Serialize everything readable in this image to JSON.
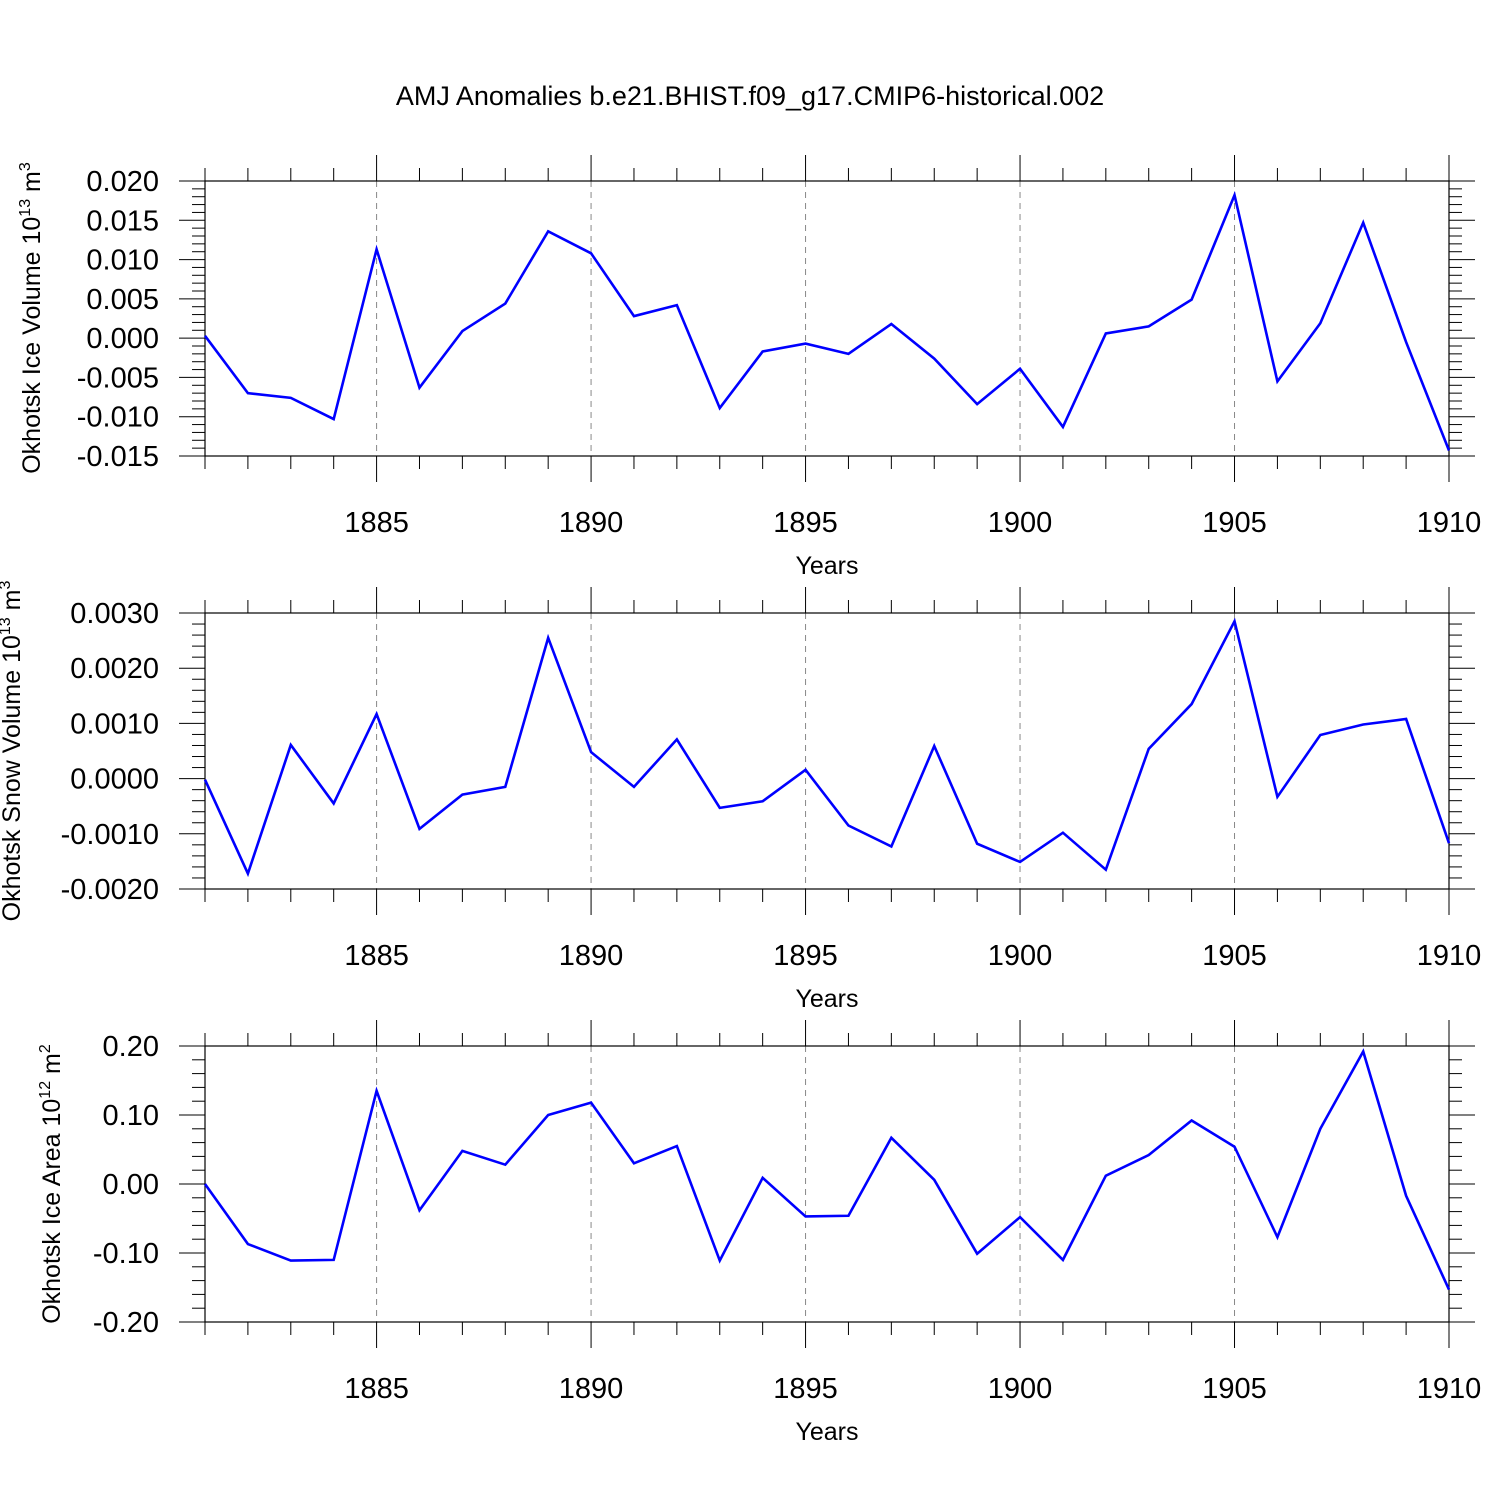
{
  "title": "AMJ Anomalies b.e21.BHIST.f09_g17.CMIP6-historical.002",
  "chart_data": [
    {
      "type": "line",
      "title": "",
      "xlabel": "Years",
      "ylabel": {
        "main": "Okhotsk Ice Volume 10",
        "exp": "13",
        "unit": " m",
        "unit_exp": "3"
      },
      "xlim": [
        1881,
        1910
      ],
      "ylim": [
        -0.015,
        0.02
      ],
      "x_ticks": [
        1885,
        1890,
        1895,
        1900,
        1905,
        1910
      ],
      "y_ticks": [
        -0.015,
        -0.01,
        -0.005,
        0.0,
        0.005,
        0.01,
        0.015,
        0.02
      ],
      "y_tick_labels": [
        "-0.015",
        "-0.010",
        "-0.005",
        "0.000",
        "0.005",
        "0.010",
        "0.015",
        "0.020"
      ],
      "grid": "vertical dashed at major x ticks",
      "color": "#0000ff",
      "series": [
        {
          "name": "Okhotsk Ice Volume",
          "x": [
            1881,
            1882,
            1883,
            1884,
            1885,
            1886,
            1887,
            1888,
            1889,
            1890,
            1891,
            1892,
            1893,
            1894,
            1895,
            1896,
            1897,
            1898,
            1899,
            1900,
            1901,
            1902,
            1903,
            1904,
            1905,
            1906,
            1907,
            1908,
            1909,
            1910
          ],
          "values": [
            0.0003,
            -0.007,
            -0.0076,
            -0.0103,
            0.0113,
            -0.0063,
            0.0009,
            0.0044,
            0.0136,
            0.0108,
            0.0028,
            0.0042,
            -0.0089,
            -0.0017,
            -0.0007,
            -0.002,
            0.0018,
            -0.0026,
            -0.0084,
            -0.0039,
            -0.0113,
            0.0006,
            0.0015,
            0.0049,
            0.0182,
            -0.0055,
            0.0019,
            0.0147,
            -0.0005,
            -0.0143
          ]
        }
      ]
    },
    {
      "type": "line",
      "title": "",
      "xlabel": "Years",
      "ylabel": {
        "main": "Okhotsk Snow Volume 10",
        "exp": "13",
        "unit": " m",
        "unit_exp": "3"
      },
      "xlim": [
        1881,
        1910
      ],
      "ylim": [
        -0.002,
        0.003
      ],
      "x_ticks": [
        1885,
        1890,
        1895,
        1900,
        1905,
        1910
      ],
      "y_ticks": [
        -0.002,
        -0.001,
        0.0,
        0.001,
        0.002,
        0.003
      ],
      "y_tick_labels": [
        "-0.0020",
        "-0.0010",
        "0.0000",
        "0.0010",
        "0.0020",
        "0.0030"
      ],
      "grid": "vertical dashed at major x ticks",
      "color": "#0000ff",
      "series": [
        {
          "name": "Okhotsk Snow Volume",
          "x": [
            1881,
            1882,
            1883,
            1884,
            1885,
            1886,
            1887,
            1888,
            1889,
            1890,
            1891,
            1892,
            1893,
            1894,
            1895,
            1896,
            1897,
            1898,
            1899,
            1900,
            1901,
            1902,
            1903,
            1904,
            1905,
            1906,
            1907,
            1908,
            1909,
            1910
          ],
          "values": [
            -2e-05,
            -0.00172,
            0.00061,
            -0.00045,
            0.00117,
            -0.00091,
            -0.00029,
            -0.00015,
            0.00255,
            0.00048,
            -0.00015,
            0.00071,
            -0.00053,
            -0.00041,
            0.00016,
            -0.00085,
            -0.00123,
            0.00059,
            -0.00118,
            -0.00151,
            -0.00098,
            -0.00165,
            0.00054,
            0.00135,
            0.00285,
            -0.00033,
            0.00079,
            0.00098,
            0.00108,
            -0.00117
          ]
        }
      ]
    },
    {
      "type": "line",
      "title": "",
      "xlabel": "Years",
      "ylabel": {
        "main": "Okhotsk Ice Area 10",
        "exp": "12",
        "unit": " m",
        "unit_exp": "2"
      },
      "xlim": [
        1881,
        1910
      ],
      "ylim": [
        -0.2,
        0.2
      ],
      "x_ticks": [
        1885,
        1890,
        1895,
        1900,
        1905,
        1910
      ],
      "y_ticks": [
        -0.2,
        -0.1,
        0.0,
        0.1,
        0.2
      ],
      "y_tick_labels": [
        "-0.20",
        "-0.10",
        "0.00",
        "0.10",
        "0.20"
      ],
      "grid": "vertical dashed at major x ticks",
      "color": "#0000ff",
      "series": [
        {
          "name": "Okhotsk Ice Area",
          "x": [
            1881,
            1882,
            1883,
            1884,
            1885,
            1886,
            1887,
            1888,
            1889,
            1890,
            1891,
            1892,
            1893,
            1894,
            1895,
            1896,
            1897,
            1898,
            1899,
            1900,
            1901,
            1902,
            1903,
            1904,
            1905,
            1906,
            1907,
            1908,
            1909,
            1910
          ],
          "values": [
            0.0,
            -0.087,
            -0.111,
            -0.11,
            0.135,
            -0.038,
            0.048,
            0.028,
            0.1,
            0.118,
            0.03,
            0.055,
            -0.111,
            0.009,
            -0.047,
            -0.046,
            0.067,
            0.006,
            -0.101,
            -0.048,
            -0.11,
            0.012,
            0.042,
            0.092,
            0.054,
            -0.077,
            0.08,
            0.192,
            -0.017,
            -0.153
          ]
        }
      ]
    }
  ]
}
